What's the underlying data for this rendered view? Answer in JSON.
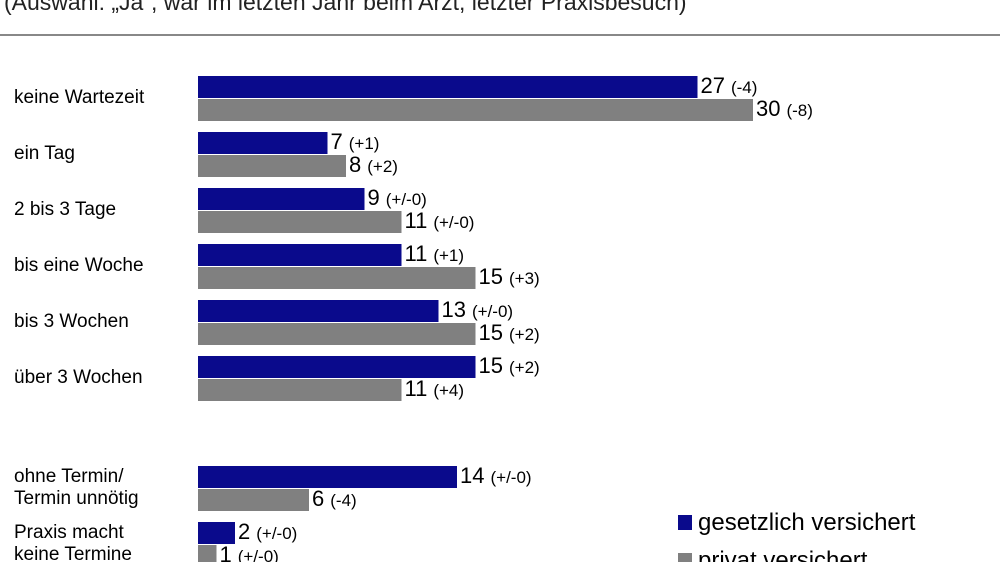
{
  "chart_data": {
    "type": "bar",
    "orientation": "horizontal",
    "subtitle": "(Auswahl: „Ja“, war im letzten Jahr beim Arzt; letzter Praxisbesuch)",
    "categories": [
      "keine Wartezeit",
      "ein Tag",
      "2 bis 3 Tage",
      "bis eine Woche",
      "bis 3 Wochen",
      "über 3 Wochen",
      "ohne Termin/\nTermin unnötig",
      "Praxis macht\nkeine Termine"
    ],
    "series": [
      {
        "name": "gesetzlich versichert",
        "color": "#0a0a8c",
        "values": [
          27,
          7,
          9,
          11,
          13,
          15,
          14,
          2
        ],
        "changes": [
          "(-4)",
          "(+1)",
          "(+/-0)",
          "(+1)",
          "(+/-0)",
          "(+2)",
          "(+/-0)",
          "(+/-0)"
        ]
      },
      {
        "name": "privat versichert",
        "color": "#808080",
        "values": [
          30,
          8,
          11,
          15,
          15,
          11,
          6,
          1
        ],
        "changes": [
          "(-8)",
          "(+2)",
          "(+/-0)",
          "(+3)",
          "(+2)",
          "(+4)",
          "(-4)",
          "(+/-0)"
        ]
      }
    ]
  }
}
